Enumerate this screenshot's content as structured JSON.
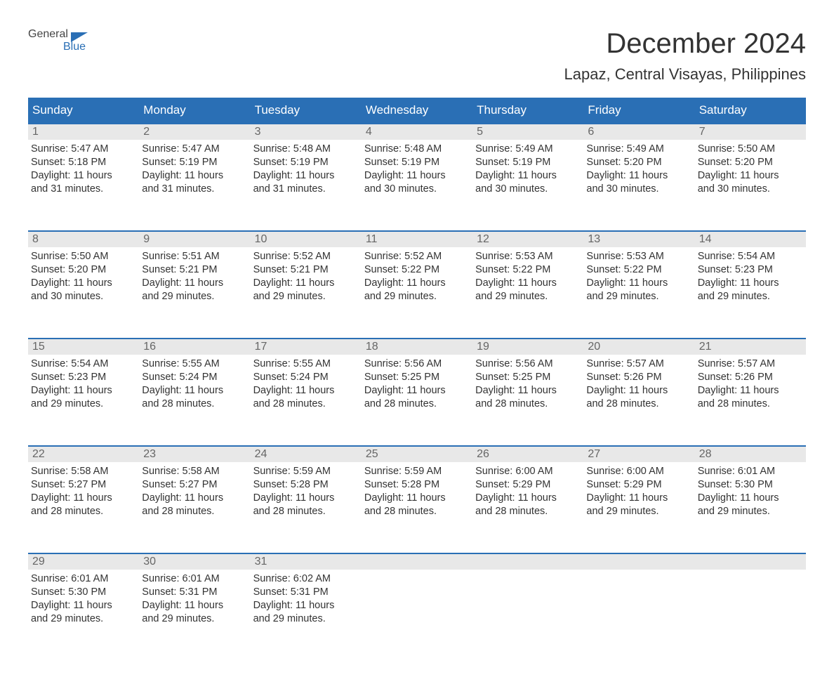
{
  "logo": {
    "text1": "General",
    "text2": "Blue"
  },
  "title": "December 2024",
  "location": "Lapaz, Central Visayas, Philippines",
  "colors": {
    "header_bg": "#2a6fb5",
    "header_text": "#ffffff",
    "daynum_bg": "#e8e8e8",
    "daynum_text": "#666666",
    "border": "#2a6fb5",
    "body_text": "#333333",
    "logo_gray": "#444444",
    "logo_blue": "#2a6fb5"
  },
  "day_headers": [
    "Sunday",
    "Monday",
    "Tuesday",
    "Wednesday",
    "Thursday",
    "Friday",
    "Saturday"
  ],
  "weeks": [
    [
      {
        "num": "1",
        "sunrise": "Sunrise: 5:47 AM",
        "sunset": "Sunset: 5:18 PM",
        "daylight1": "Daylight: 11 hours",
        "daylight2": "and 31 minutes."
      },
      {
        "num": "2",
        "sunrise": "Sunrise: 5:47 AM",
        "sunset": "Sunset: 5:19 PM",
        "daylight1": "Daylight: 11 hours",
        "daylight2": "and 31 minutes."
      },
      {
        "num": "3",
        "sunrise": "Sunrise: 5:48 AM",
        "sunset": "Sunset: 5:19 PM",
        "daylight1": "Daylight: 11 hours",
        "daylight2": "and 31 minutes."
      },
      {
        "num": "4",
        "sunrise": "Sunrise: 5:48 AM",
        "sunset": "Sunset: 5:19 PM",
        "daylight1": "Daylight: 11 hours",
        "daylight2": "and 30 minutes."
      },
      {
        "num": "5",
        "sunrise": "Sunrise: 5:49 AM",
        "sunset": "Sunset: 5:19 PM",
        "daylight1": "Daylight: 11 hours",
        "daylight2": "and 30 minutes."
      },
      {
        "num": "6",
        "sunrise": "Sunrise: 5:49 AM",
        "sunset": "Sunset: 5:20 PM",
        "daylight1": "Daylight: 11 hours",
        "daylight2": "and 30 minutes."
      },
      {
        "num": "7",
        "sunrise": "Sunrise: 5:50 AM",
        "sunset": "Sunset: 5:20 PM",
        "daylight1": "Daylight: 11 hours",
        "daylight2": "and 30 minutes."
      }
    ],
    [
      {
        "num": "8",
        "sunrise": "Sunrise: 5:50 AM",
        "sunset": "Sunset: 5:20 PM",
        "daylight1": "Daylight: 11 hours",
        "daylight2": "and 30 minutes."
      },
      {
        "num": "9",
        "sunrise": "Sunrise: 5:51 AM",
        "sunset": "Sunset: 5:21 PM",
        "daylight1": "Daylight: 11 hours",
        "daylight2": "and 29 minutes."
      },
      {
        "num": "10",
        "sunrise": "Sunrise: 5:52 AM",
        "sunset": "Sunset: 5:21 PM",
        "daylight1": "Daylight: 11 hours",
        "daylight2": "and 29 minutes."
      },
      {
        "num": "11",
        "sunrise": "Sunrise: 5:52 AM",
        "sunset": "Sunset: 5:22 PM",
        "daylight1": "Daylight: 11 hours",
        "daylight2": "and 29 minutes."
      },
      {
        "num": "12",
        "sunrise": "Sunrise: 5:53 AM",
        "sunset": "Sunset: 5:22 PM",
        "daylight1": "Daylight: 11 hours",
        "daylight2": "and 29 minutes."
      },
      {
        "num": "13",
        "sunrise": "Sunrise: 5:53 AM",
        "sunset": "Sunset: 5:22 PM",
        "daylight1": "Daylight: 11 hours",
        "daylight2": "and 29 minutes."
      },
      {
        "num": "14",
        "sunrise": "Sunrise: 5:54 AM",
        "sunset": "Sunset: 5:23 PM",
        "daylight1": "Daylight: 11 hours",
        "daylight2": "and 29 minutes."
      }
    ],
    [
      {
        "num": "15",
        "sunrise": "Sunrise: 5:54 AM",
        "sunset": "Sunset: 5:23 PM",
        "daylight1": "Daylight: 11 hours",
        "daylight2": "and 29 minutes."
      },
      {
        "num": "16",
        "sunrise": "Sunrise: 5:55 AM",
        "sunset": "Sunset: 5:24 PM",
        "daylight1": "Daylight: 11 hours",
        "daylight2": "and 28 minutes."
      },
      {
        "num": "17",
        "sunrise": "Sunrise: 5:55 AM",
        "sunset": "Sunset: 5:24 PM",
        "daylight1": "Daylight: 11 hours",
        "daylight2": "and 28 minutes."
      },
      {
        "num": "18",
        "sunrise": "Sunrise: 5:56 AM",
        "sunset": "Sunset: 5:25 PM",
        "daylight1": "Daylight: 11 hours",
        "daylight2": "and 28 minutes."
      },
      {
        "num": "19",
        "sunrise": "Sunrise: 5:56 AM",
        "sunset": "Sunset: 5:25 PM",
        "daylight1": "Daylight: 11 hours",
        "daylight2": "and 28 minutes."
      },
      {
        "num": "20",
        "sunrise": "Sunrise: 5:57 AM",
        "sunset": "Sunset: 5:26 PM",
        "daylight1": "Daylight: 11 hours",
        "daylight2": "and 28 minutes."
      },
      {
        "num": "21",
        "sunrise": "Sunrise: 5:57 AM",
        "sunset": "Sunset: 5:26 PM",
        "daylight1": "Daylight: 11 hours",
        "daylight2": "and 28 minutes."
      }
    ],
    [
      {
        "num": "22",
        "sunrise": "Sunrise: 5:58 AM",
        "sunset": "Sunset: 5:27 PM",
        "daylight1": "Daylight: 11 hours",
        "daylight2": "and 28 minutes."
      },
      {
        "num": "23",
        "sunrise": "Sunrise: 5:58 AM",
        "sunset": "Sunset: 5:27 PM",
        "daylight1": "Daylight: 11 hours",
        "daylight2": "and 28 minutes."
      },
      {
        "num": "24",
        "sunrise": "Sunrise: 5:59 AM",
        "sunset": "Sunset: 5:28 PM",
        "daylight1": "Daylight: 11 hours",
        "daylight2": "and 28 minutes."
      },
      {
        "num": "25",
        "sunrise": "Sunrise: 5:59 AM",
        "sunset": "Sunset: 5:28 PM",
        "daylight1": "Daylight: 11 hours",
        "daylight2": "and 28 minutes."
      },
      {
        "num": "26",
        "sunrise": "Sunrise: 6:00 AM",
        "sunset": "Sunset: 5:29 PM",
        "daylight1": "Daylight: 11 hours",
        "daylight2": "and 28 minutes."
      },
      {
        "num": "27",
        "sunrise": "Sunrise: 6:00 AM",
        "sunset": "Sunset: 5:29 PM",
        "daylight1": "Daylight: 11 hours",
        "daylight2": "and 29 minutes."
      },
      {
        "num": "28",
        "sunrise": "Sunrise: 6:01 AM",
        "sunset": "Sunset: 5:30 PM",
        "daylight1": "Daylight: 11 hours",
        "daylight2": "and 29 minutes."
      }
    ],
    [
      {
        "num": "29",
        "sunrise": "Sunrise: 6:01 AM",
        "sunset": "Sunset: 5:30 PM",
        "daylight1": "Daylight: 11 hours",
        "daylight2": "and 29 minutes."
      },
      {
        "num": "30",
        "sunrise": "Sunrise: 6:01 AM",
        "sunset": "Sunset: 5:31 PM",
        "daylight1": "Daylight: 11 hours",
        "daylight2": "and 29 minutes."
      },
      {
        "num": "31",
        "sunrise": "Sunrise: 6:02 AM",
        "sunset": "Sunset: 5:31 PM",
        "daylight1": "Daylight: 11 hours",
        "daylight2": "and 29 minutes."
      },
      null,
      null,
      null,
      null
    ]
  ]
}
